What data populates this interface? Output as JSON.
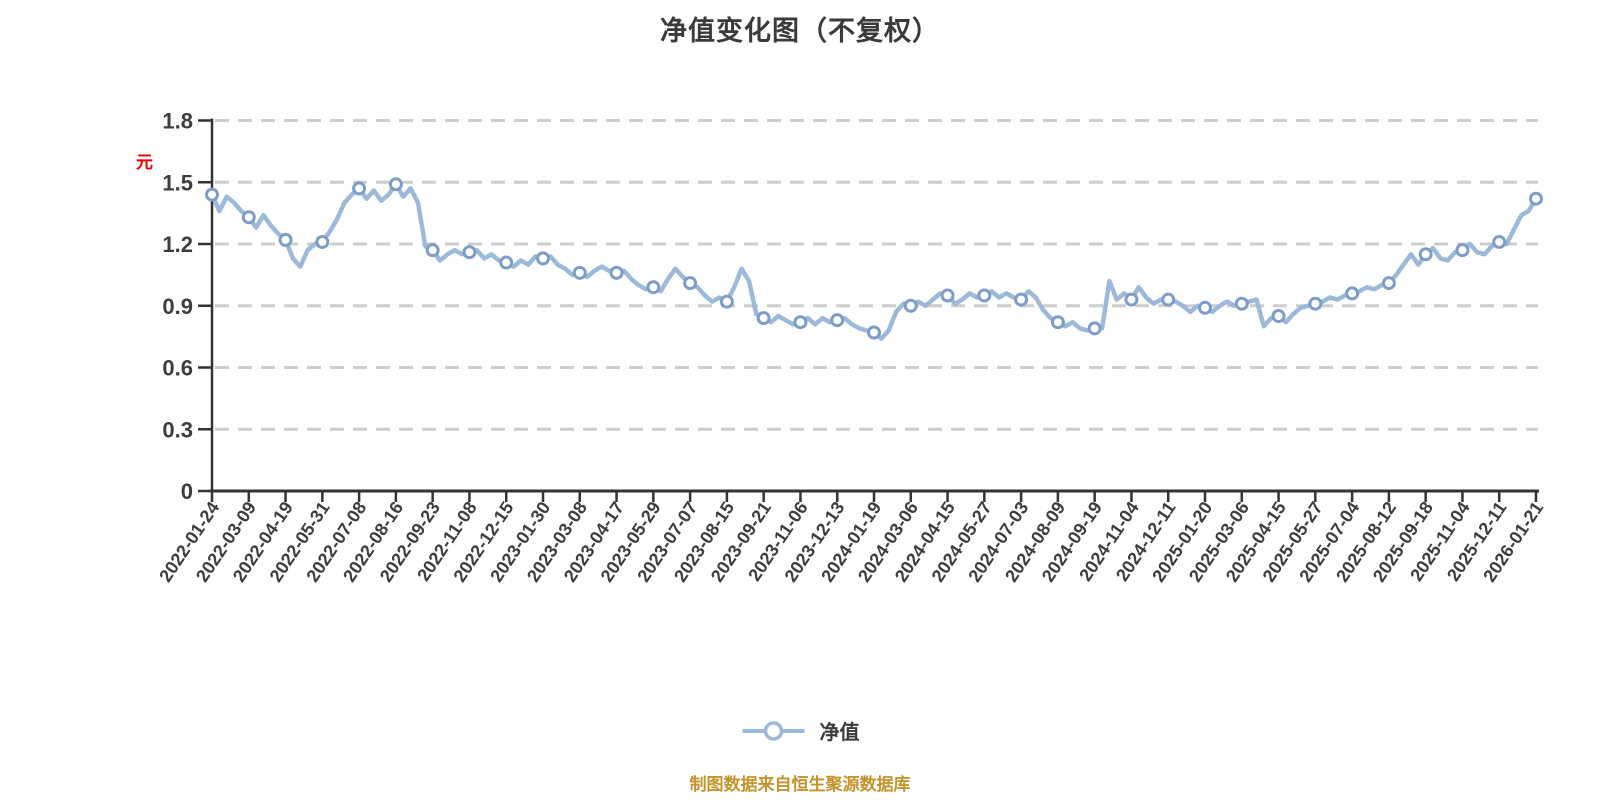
{
  "title": "净值变化图（不复权）",
  "y_axis_unit": "元",
  "legend": {
    "label": "净值"
  },
  "footer": "制图数据来自恒生聚源数据库",
  "colors": {
    "line": "#9db9da",
    "marker_ring": "#7d9dc7",
    "marker_fill": "#ffffff",
    "grid": "#cdcdcd",
    "axis": "#333333",
    "tick_text": "#3d3d3d",
    "title_text": "#3a3a3a",
    "unit_text": "#e60000",
    "footer_text": "#c4942c"
  },
  "chart_data": {
    "type": "line",
    "title": "净值变化图（不复权）",
    "series_name": "净值",
    "ylabel_unit": "元",
    "ylim": [
      0,
      1.8
    ],
    "y_ticks": [
      0,
      0.3,
      0.6,
      0.9,
      1.2,
      1.5,
      1.8
    ],
    "y_tick_labels": [
      "0",
      "0.3",
      "0.6",
      "0.9",
      "1.2",
      "1.5",
      "1.8"
    ],
    "grid": "horizontal dashed",
    "legend_position": "bottom center",
    "x_tick_labels": [
      "2022-01-24",
      "2022-03-09",
      "2022-04-19",
      "2022-05-31",
      "2022-07-08",
      "2022-08-16",
      "2022-09-23",
      "2022-11-08",
      "2022-12-15",
      "2023-01-30",
      "2023-03-08",
      "2023-04-17",
      "2023-05-29",
      "2023-07-07",
      "2023-08-15",
      "2023-09-21",
      "2023-11-06",
      "2023-12-13",
      "2024-01-19",
      "2024-03-06",
      "2024-04-15",
      "2024-05-27",
      "2024-07-03",
      "2024-08-09",
      "2024-09-19",
      "2024-11-04",
      "2024-12-11",
      "2025-01-20",
      "2025-03-06",
      "2025-04-15",
      "2025-05-27",
      "2025-07-04",
      "2025-08-12",
      "2025-09-18",
      "2025-11-04",
      "2025-12-11",
      "2026-01-21"
    ],
    "values_at_ticks": [
      1.44,
      1.33,
      1.22,
      1.21,
      1.47,
      1.49,
      1.17,
      1.16,
      1.11,
      1.13,
      1.06,
      1.06,
      0.99,
      1.01,
      0.92,
      0.84,
      0.82,
      0.83,
      0.77,
      0.9,
      0.95,
      0.95,
      0.93,
      0.82,
      0.79,
      0.93,
      0.93,
      0.89,
      0.91,
      0.85,
      0.91,
      0.96,
      1.01,
      1.15,
      1.17,
      1.21,
      1.42
    ],
    "points_per_tick": 5,
    "dense_values": [
      1.44,
      1.36,
      1.43,
      1.4,
      1.36,
      1.33,
      1.28,
      1.34,
      1.29,
      1.25,
      1.22,
      1.13,
      1.09,
      1.17,
      1.2,
      1.21,
      1.26,
      1.32,
      1.4,
      1.44,
      1.47,
      1.42,
      1.46,
      1.41,
      1.44,
      1.49,
      1.43,
      1.47,
      1.4,
      1.19,
      1.17,
      1.12,
      1.15,
      1.17,
      1.15,
      1.16,
      1.17,
      1.13,
      1.15,
      1.12,
      1.11,
      1.09,
      1.12,
      1.1,
      1.14,
      1.13,
      1.14,
      1.1,
      1.08,
      1.05,
      1.06,
      1.04,
      1.07,
      1.09,
      1.07,
      1.06,
      1.07,
      1.03,
      1.0,
      0.98,
      0.99,
      0.97,
      1.03,
      1.08,
      1.04,
      1.01,
      0.99,
      0.95,
      0.92,
      0.94,
      0.92,
      0.99,
      1.08,
      1.02,
      0.86,
      0.84,
      0.82,
      0.85,
      0.83,
      0.81,
      0.82,
      0.84,
      0.81,
      0.84,
      0.82,
      0.83,
      0.84,
      0.81,
      0.79,
      0.78,
      0.77,
      0.74,
      0.78,
      0.87,
      0.91,
      0.9,
      0.92,
      0.9,
      0.93,
      0.96,
      0.95,
      0.91,
      0.93,
      0.96,
      0.94,
      0.95,
      0.97,
      0.94,
      0.96,
      0.94,
      0.93,
      0.97,
      0.94,
      0.88,
      0.84,
      0.82,
      0.8,
      0.82,
      0.79,
      0.78,
      0.79,
      0.79,
      1.02,
      0.93,
      0.96,
      0.93,
      0.99,
      0.94,
      0.91,
      0.93,
      0.93,
      0.92,
      0.9,
      0.87,
      0.9,
      0.89,
      0.87,
      0.9,
      0.92,
      0.9,
      0.91,
      0.92,
      0.93,
      0.8,
      0.84,
      0.85,
      0.82,
      0.86,
      0.89,
      0.9,
      0.91,
      0.92,
      0.94,
      0.93,
      0.95,
      0.96,
      0.97,
      0.99,
      0.98,
      1.0,
      1.01,
      1.05,
      1.1,
      1.15,
      1.1,
      1.15,
      1.18,
      1.13,
      1.12,
      1.16,
      1.17,
      1.2,
      1.16,
      1.15,
      1.19,
      1.21,
      1.2,
      1.27,
      1.34,
      1.36,
      1.42
    ]
  }
}
